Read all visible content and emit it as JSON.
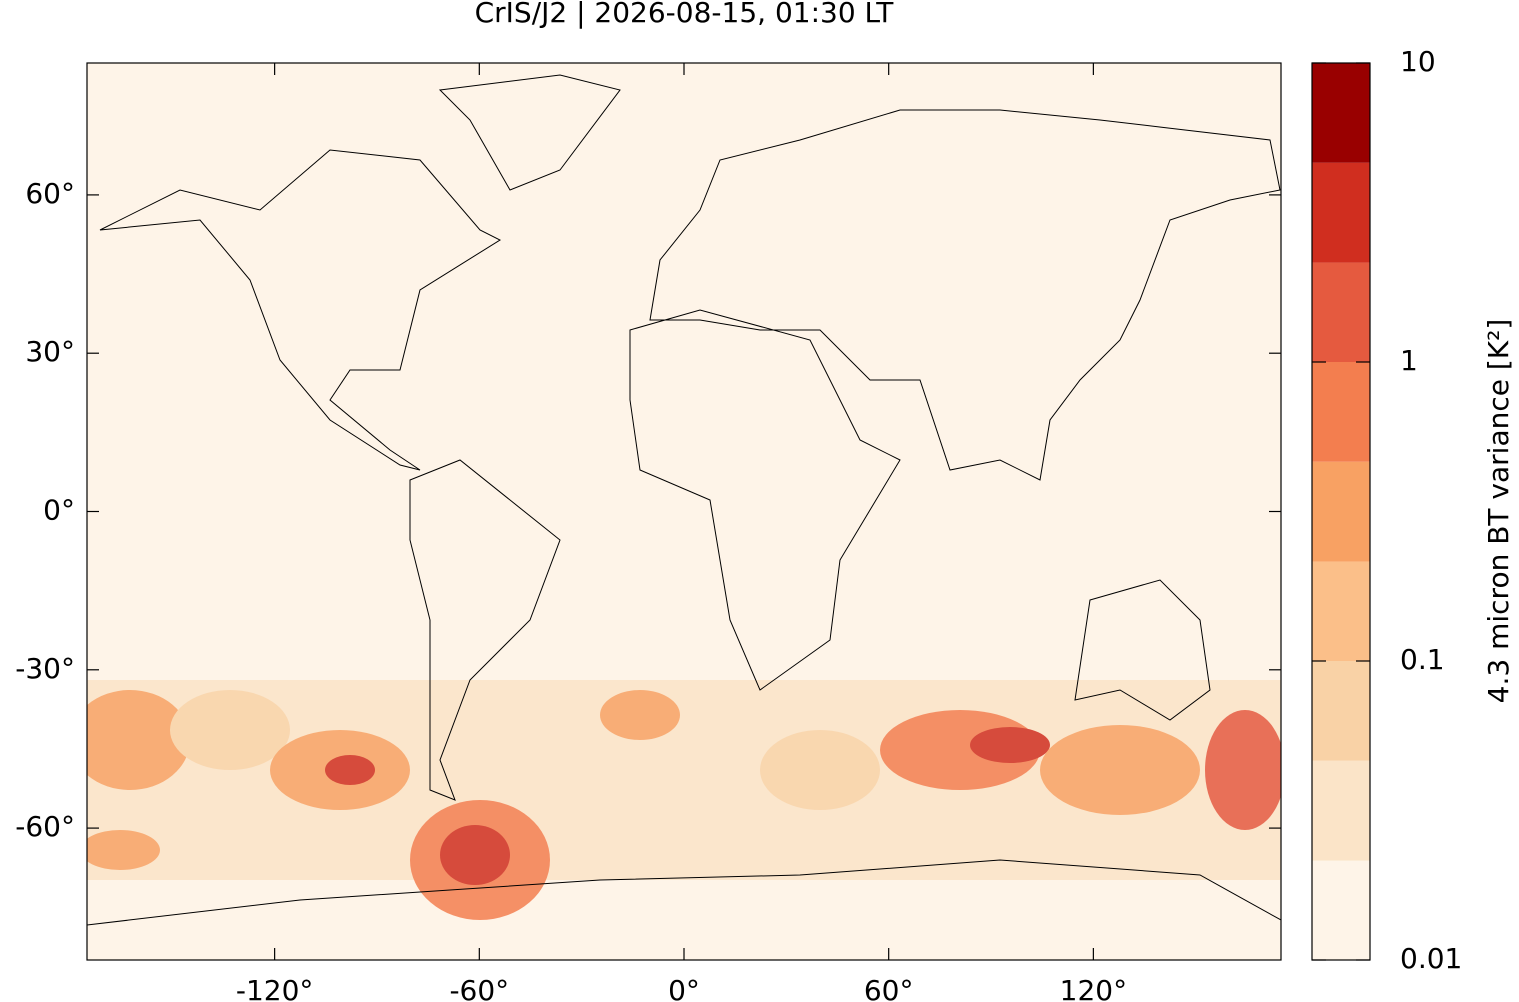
{
  "chart_data": {
    "type": "map",
    "title": "CrIS/J2 | 2026-08-15, 01:30 LT",
    "xlim": [
      -175,
      175
    ],
    "ylim": [
      -85,
      85
    ],
    "xticks": [
      {
        "value": -120,
        "label": "-120°"
      },
      {
        "value": -60,
        "label": "-60°"
      },
      {
        "value": 0,
        "label": "0°"
      },
      {
        "value": 60,
        "label": "60°"
      },
      {
        "value": 120,
        "label": "120°"
      }
    ],
    "yticks": [
      {
        "value": -60,
        "label": "-60°"
      },
      {
        "value": -30,
        "label": "-30°"
      },
      {
        "value": 0,
        "label": "0°"
      },
      {
        "value": 30,
        "label": "30°"
      },
      {
        "value": 60,
        "label": "60°"
      }
    ],
    "colorbar": {
      "label": "4.3 micron BT variance [K²]",
      "log_scale": true,
      "clim": [
        0.01,
        10
      ],
      "ticks": [
        0.01,
        0.1,
        1,
        10
      ],
      "levels": [
        0.01,
        0.0215,
        0.0464,
        0.1,
        0.215,
        0.464,
        1,
        2.15,
        4.64,
        10
      ],
      "colors": [
        "#fef4e8",
        "#fbe4c8",
        "#f9d2a6",
        "#fbbf89",
        "#f8a163",
        "#f37e4f",
        "#e55a3f",
        "#d02e1f",
        "#990000"
      ]
    }
  }
}
